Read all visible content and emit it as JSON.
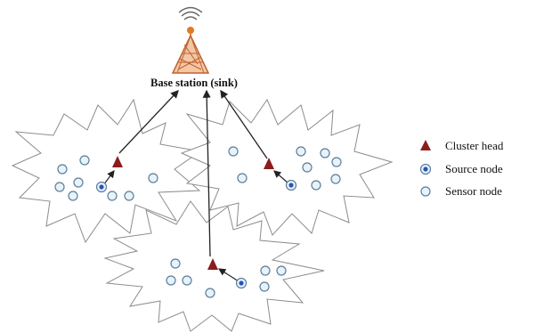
{
  "base_station": {
    "label": "Base station (sink)"
  },
  "legend": {
    "items": [
      {
        "label": "Cluster head",
        "icon": "triangle-icon",
        "color": "#8b1d1d"
      },
      {
        "label": "Source node",
        "icon": "source-node-icon",
        "color": "#2a52be"
      },
      {
        "label": "Sensor node",
        "icon": "sensor-node-icon",
        "color": "#cfe4f2"
      }
    ]
  },
  "colors": {
    "tower": "#f3c7a5",
    "tower_stroke": "#c0622f",
    "antenna_ball": "#e07a22",
    "cluster_head": "#8b1d1d",
    "sensor_fill": "#e8f2fa",
    "sensor_stroke": "#5a7f99",
    "source_dot": "#2a52be",
    "cluster_outline": "#8c8c8c",
    "arrow": "#222222"
  }
}
